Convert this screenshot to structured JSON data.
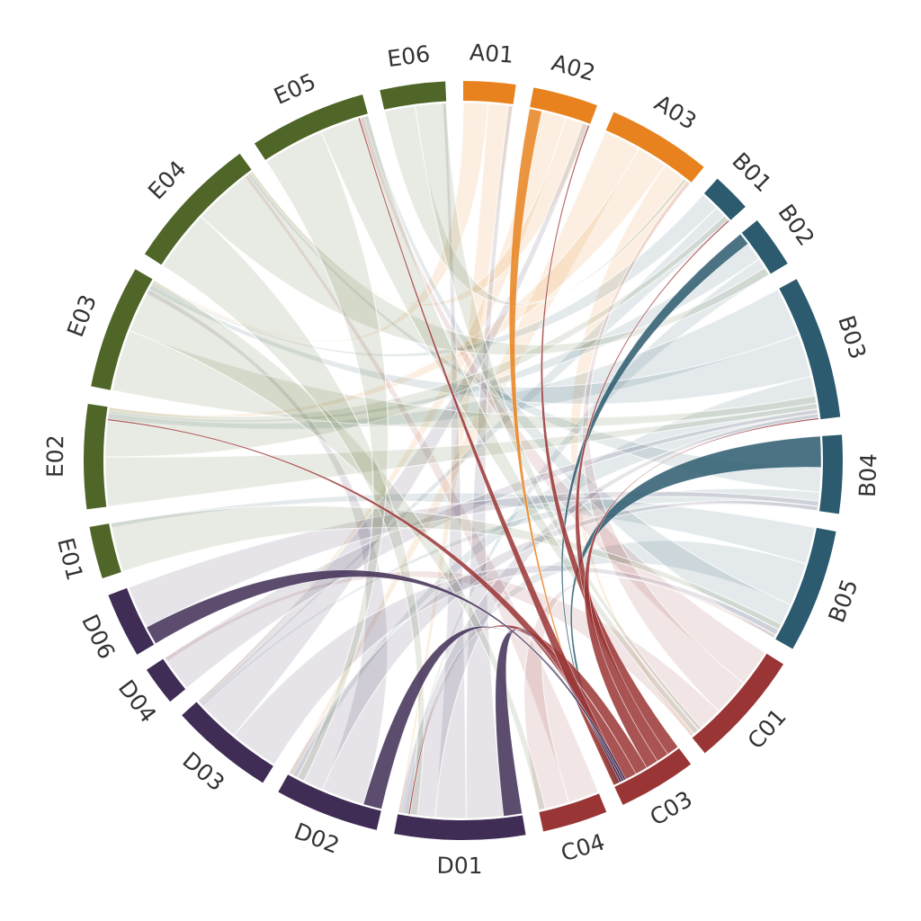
{
  "chart_data": {
    "type": "chord",
    "highlight": "C03",
    "nodes": [
      {
        "name": "A01",
        "color": "#e8821e",
        "value": 8
      },
      {
        "name": "A02",
        "color": "#e8821e",
        "value": 10
      },
      {
        "name": "A03",
        "color": "#e8821e",
        "value": 16
      },
      {
        "name": "B01",
        "color": "#2c5a6e",
        "value": 6
      },
      {
        "name": "B02",
        "color": "#2c5a6e",
        "value": 8
      },
      {
        "name": "B03",
        "color": "#2c5a6e",
        "value": 22
      },
      {
        "name": "B04",
        "color": "#2c5a6e",
        "value": 12
      },
      {
        "name": "B05",
        "color": "#2c5a6e",
        "value": 19
      },
      {
        "name": "C01",
        "color": "#9a3535",
        "value": 18
      },
      {
        "name": "C03",
        "color": "#9a3535",
        "value": 12
      },
      {
        "name": "C04",
        "color": "#9a3535",
        "value": 10
      },
      {
        "name": "D01",
        "color": "#3f2d55",
        "value": 20
      },
      {
        "name": "D02",
        "color": "#3f2d55",
        "value": 16
      },
      {
        "name": "D03",
        "color": "#3f2d55",
        "value": 16
      },
      {
        "name": "D04",
        "color": "#3f2d55",
        "value": 6
      },
      {
        "name": "D06",
        "color": "#3f2d55",
        "value": 10
      },
      {
        "name": "E01",
        "color": "#4f6628",
        "value": 8
      },
      {
        "name": "E02",
        "color": "#4f6628",
        "value": 16
      },
      {
        "name": "E03",
        "color": "#4f6628",
        "value": 19
      },
      {
        "name": "E04",
        "color": "#4f6628",
        "value": 21
      },
      {
        "name": "E05",
        "color": "#4f6628",
        "value": 18
      },
      {
        "name": "E06",
        "color": "#4f6628",
        "value": 10
      }
    ],
    "links": [
      {
        "source": "A01",
        "target": "E03",
        "value": 4
      },
      {
        "source": "A01",
        "target": "D01",
        "value": 4
      },
      {
        "source": "A02",
        "target": "C03",
        "value": 2
      },
      {
        "source": "A02",
        "target": "D03",
        "value": 4
      },
      {
        "source": "A02",
        "target": "E04",
        "value": 4
      },
      {
        "source": "A03",
        "target": "D02",
        "value": 6
      },
      {
        "source": "A03",
        "target": "E02",
        "value": 5
      },
      {
        "source": "A03",
        "target": "C01",
        "value": 5
      },
      {
        "source": "B01",
        "target": "E03",
        "value": 3
      },
      {
        "source": "B01",
        "target": "D03",
        "value": 3
      },
      {
        "source": "B02",
        "target": "C03",
        "value": 2
      },
      {
        "source": "B02",
        "target": "E02",
        "value": 3
      },
      {
        "source": "B02",
        "target": "D01",
        "value": 3
      },
      {
        "source": "B03",
        "target": "E02",
        "value": 8
      },
      {
        "source": "B03",
        "target": "E03",
        "value": 7
      },
      {
        "source": "B03",
        "target": "D02",
        "value": 7
      },
      {
        "source": "B04",
        "target": "C03",
        "value": 5
      },
      {
        "source": "B04",
        "target": "E04",
        "value": 4
      },
      {
        "source": "B04",
        "target": "D03",
        "value": 3
      },
      {
        "source": "B05",
        "target": "E01",
        "value": 6
      },
      {
        "source": "B05",
        "target": "D01",
        "value": 7
      },
      {
        "source": "B05",
        "target": "E05",
        "value": 6
      },
      {
        "source": "C01",
        "target": "E05",
        "value": 6
      },
      {
        "source": "C01",
        "target": "A03",
        "value": 6
      },
      {
        "source": "C01",
        "target": "D04",
        "value": 6
      },
      {
        "source": "C03",
        "target": "A02",
        "value": 2
      },
      {
        "source": "C03",
        "target": "B01",
        "value": 2
      },
      {
        "source": "C03",
        "target": "B03",
        "value": 2
      },
      {
        "source": "C03",
        "target": "D01",
        "value": 2
      },
      {
        "source": "C03",
        "target": "E02",
        "value": 2
      },
      {
        "source": "C03",
        "target": "E05",
        "value": 2
      },
      {
        "source": "C04",
        "target": "E04",
        "value": 5
      },
      {
        "source": "C04",
        "target": "B05",
        "value": 5
      },
      {
        "source": "D01",
        "target": "C03",
        "value": 3
      },
      {
        "source": "D01",
        "target": "A01",
        "value": 6
      },
      {
        "source": "D01",
        "target": "E06",
        "value": 5
      },
      {
        "source": "D01",
        "target": "B03",
        "value": 6
      },
      {
        "source": "D02",
        "target": "C03",
        "value": 3
      },
      {
        "source": "D02",
        "target": "E03",
        "value": 7
      },
      {
        "source": "D02",
        "target": "B04",
        "value": 6
      },
      {
        "source": "D03",
        "target": "B05",
        "value": 8
      },
      {
        "source": "D03",
        "target": "A02",
        "value": 8
      },
      {
        "source": "D04",
        "target": "B03",
        "value": 6
      },
      {
        "source": "D06",
        "target": "C03",
        "value": 3
      },
      {
        "source": "D06",
        "target": "B04",
        "value": 7
      },
      {
        "source": "E01",
        "target": "B05",
        "value": 8
      },
      {
        "source": "E02",
        "target": "B03",
        "value": 8
      },
      {
        "source": "E02",
        "target": "B01",
        "value": 8
      },
      {
        "source": "E03",
        "target": "B03",
        "value": 10
      },
      {
        "source": "E03",
        "target": "C04",
        "value": 9
      },
      {
        "source": "E04",
        "target": "D01",
        "value": 10
      },
      {
        "source": "E04",
        "target": "B02",
        "value": 11
      },
      {
        "source": "E05",
        "target": "D02",
        "value": 10
      },
      {
        "source": "E05",
        "target": "C01",
        "value": 8
      },
      {
        "source": "E06",
        "target": "A03",
        "value": 5
      },
      {
        "source": "E06",
        "target": "C01",
        "value": 5
      }
    ]
  }
}
